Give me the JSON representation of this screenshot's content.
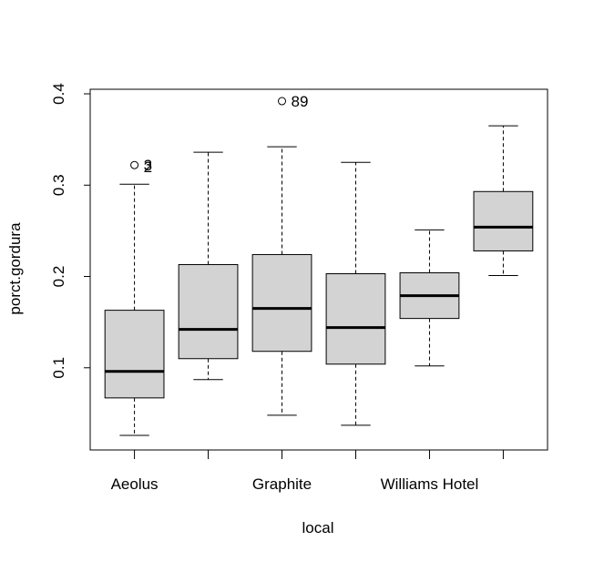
{
  "chart_data": {
    "type": "box",
    "xlabel": "local",
    "ylabel": "porct.gordura",
    "ylim": [
      0.01,
      0.405
    ],
    "yticks": [
      0.1,
      0.2,
      0.3,
      0.4
    ],
    "yticks_labels": [
      "0.1",
      "0.2",
      "0.3",
      "0.4"
    ],
    "categories": [
      "Aeolus",
      "",
      "Graphite",
      "",
      "Williams Hotel",
      ""
    ],
    "boxes": [
      {
        "whisker_low": 0.026,
        "q1": 0.067,
        "median": 0.096,
        "q3": 0.163,
        "whisker_high": 0.301
      },
      {
        "whisker_low": 0.087,
        "q1": 0.11,
        "median": 0.142,
        "q3": 0.213,
        "whisker_high": 0.336
      },
      {
        "whisker_low": 0.048,
        "q1": 0.118,
        "median": 0.165,
        "q3": 0.224,
        "whisker_high": 0.342
      },
      {
        "whisker_low": 0.037,
        "q1": 0.104,
        "median": 0.144,
        "q3": 0.203,
        "whisker_high": 0.325
      },
      {
        "whisker_low": 0.102,
        "q1": 0.154,
        "median": 0.179,
        "q3": 0.204,
        "whisker_high": 0.251
      },
      {
        "whisker_low": 0.201,
        "q1": 0.228,
        "median": 0.254,
        "q3": 0.293,
        "whisker_high": 0.365
      }
    ],
    "outliers": [
      {
        "box": 0,
        "value": 0.322,
        "labels": [
          "3",
          "2"
        ]
      },
      {
        "box": 2,
        "value": 0.392,
        "labels": [
          "89"
        ]
      }
    ]
  }
}
